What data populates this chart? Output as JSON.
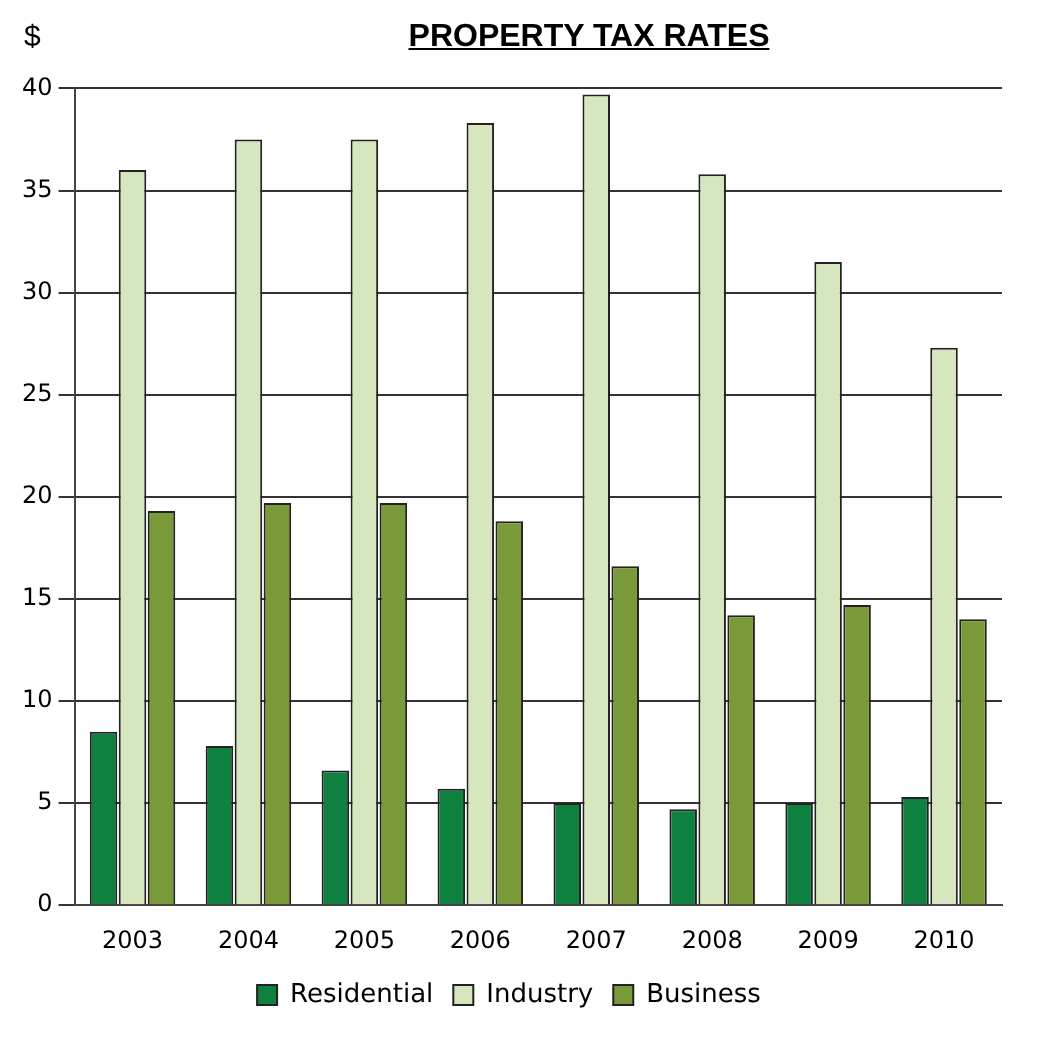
{
  "chart_data": {
    "type": "bar",
    "title": "PROPERTY TAX RATES",
    "ylabel": "$",
    "categories": [
      "2003",
      "2004",
      "2005",
      "2006",
      "2007",
      "2008",
      "2009",
      "2010"
    ],
    "series": [
      {
        "name": "Residential",
        "color": "#0e8040",
        "values": [
          8.5,
          7.8,
          6.6,
          5.7,
          5.0,
          4.7,
          5.0,
          5.3
        ]
      },
      {
        "name": "Industry",
        "color": "#d6e6be",
        "values": [
          36,
          37.5,
          37.5,
          38.3,
          39.7,
          35.8,
          31.5,
          27.3
        ]
      },
      {
        "name": "Business",
        "color": "#7a9a3a",
        "values": [
          19.3,
          19.7,
          19.7,
          18.8,
          16.6,
          14.2,
          14.7,
          14.0
        ]
      }
    ],
    "ylim": [
      0,
      40
    ],
    "yticks": [
      0,
      5,
      10,
      15,
      20,
      25,
      30,
      35,
      40
    ],
    "grid": "y",
    "legend": "bottom"
  }
}
